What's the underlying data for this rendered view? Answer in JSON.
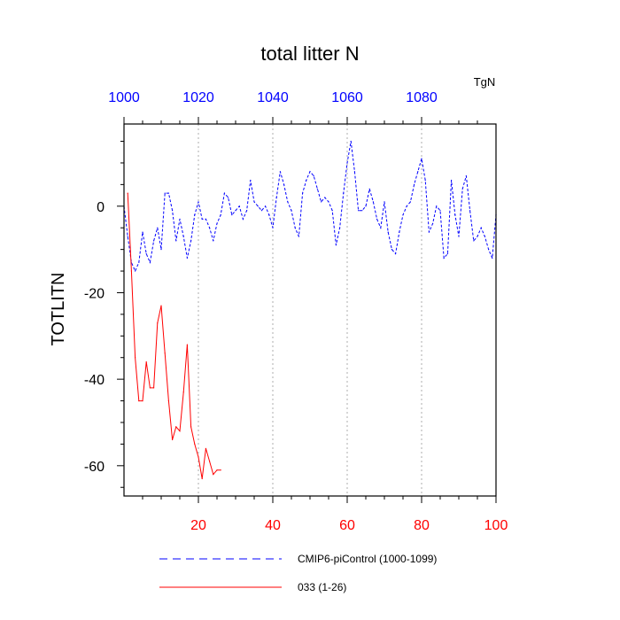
{
  "chart_data": {
    "type": "line",
    "title": "total litter N",
    "ylabel": "TOTLITN",
    "units": "TgN",
    "ylim": [
      -67,
      19
    ],
    "xlim": [
      0,
      100
    ],
    "grid": "vertical-dashed",
    "bottom_axis": {
      "ticks": [
        20,
        40,
        60,
        80,
        100
      ],
      "labels": [
        "20",
        "40",
        "60",
        "80",
        "100"
      ],
      "color": "#ff0000"
    },
    "top_axis": {
      "ticks": [
        0,
        20,
        40,
        60,
        80
      ],
      "labels": [
        "1000",
        "1020",
        "1040",
        "1060",
        "1080"
      ],
      "color": "#0000ff"
    },
    "left_axis": {
      "ticks": [
        0,
        -20,
        -40,
        -60
      ],
      "labels": [
        "0",
        "-20",
        "-40",
        "-60"
      ]
    },
    "series": [
      {
        "name": "CMIP6-piControl (1000-1099)",
        "color": "#0000ff",
        "dash": "dashed",
        "x": [
          0,
          1,
          2,
          3,
          4,
          5,
          6,
          7,
          8,
          9,
          10,
          11,
          12,
          13,
          14,
          15,
          16,
          17,
          18,
          19,
          20,
          21,
          22,
          23,
          24,
          25,
          26,
          27,
          28,
          29,
          30,
          31,
          32,
          33,
          34,
          35,
          36,
          37,
          38,
          39,
          40,
          41,
          42,
          43,
          44,
          45,
          46,
          47,
          48,
          49,
          50,
          51,
          52,
          53,
          54,
          55,
          56,
          57,
          58,
          59,
          60,
          61,
          62,
          63,
          64,
          65,
          66,
          67,
          68,
          69,
          70,
          71,
          72,
          73,
          74,
          75,
          76,
          77,
          78,
          79,
          80,
          81,
          82,
          83,
          84,
          85,
          86,
          87,
          88,
          89,
          90,
          91,
          92,
          93,
          94,
          95,
          96,
          97,
          98,
          99,
          100
        ],
        "y": [
          0,
          -7,
          -13,
          -15,
          -13,
          -6,
          -11,
          -13,
          -8,
          -5,
          -10,
          3,
          3,
          -1,
          -8,
          -3,
          -7,
          -12,
          -8,
          -2,
          1,
          -3,
          -3,
          -5,
          -8,
          -4,
          -2,
          3,
          2,
          -2,
          -1,
          0,
          -3,
          -1,
          6,
          1,
          0,
          -1,
          0,
          -2,
          -5,
          2,
          8,
          5,
          1,
          -1,
          -5,
          -7,
          3,
          6,
          8,
          7,
          4,
          1,
          2,
          1,
          -1,
          -9,
          -5,
          3,
          10,
          15,
          8,
          -1,
          -1,
          0,
          4,
          1,
          -3,
          -5,
          1,
          -6,
          -10,
          -11,
          -6,
          -2,
          0,
          1,
          5,
          8,
          11,
          6,
          -6,
          -4,
          0,
          -1,
          -12,
          -11,
          6,
          -2,
          -7,
          4,
          7,
          -1,
          -8,
          -7,
          -5,
          -7,
          -10,
          -12,
          -2
        ]
      },
      {
        "name": "033 (1-26)",
        "color": "#ff0000",
        "dash": "solid",
        "x": [
          1,
          2,
          3,
          4,
          5,
          6,
          7,
          8,
          9,
          10,
          11,
          12,
          13,
          14,
          15,
          16,
          17,
          18,
          19,
          20,
          21,
          22,
          23,
          24,
          25,
          26
        ],
        "y": [
          3,
          -15,
          -35,
          -45,
          -45,
          -36,
          -42,
          -42,
          -27,
          -23,
          -34,
          -45,
          -54,
          -51,
          -52,
          -43,
          -32,
          -51,
          -55,
          -58,
          -63,
          -56,
          -59,
          -62,
          -61,
          -61
        ]
      }
    ]
  }
}
